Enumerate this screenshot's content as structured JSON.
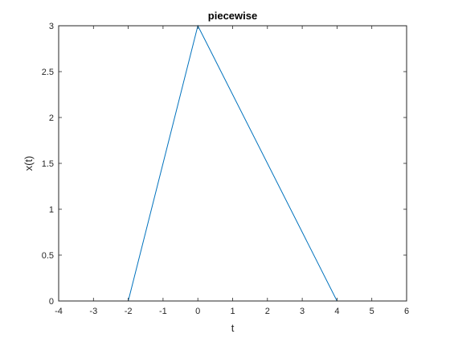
{
  "chart_data": {
    "type": "line",
    "title": "piecewise",
    "xlabel": "t",
    "ylabel": "x(t)",
    "xlim": [
      -4,
      6
    ],
    "ylim": [
      0,
      3
    ],
    "xticks": [
      -4,
      -3,
      -2,
      -1,
      0,
      1,
      2,
      3,
      4,
      5,
      6
    ],
    "yticks": [
      0,
      0.5,
      1,
      1.5,
      2,
      2.5,
      3
    ],
    "xtick_labels": [
      "-4",
      "-3",
      "-2",
      "-1",
      "0",
      "1",
      "2",
      "3",
      "4",
      "5",
      "6"
    ],
    "ytick_labels": [
      "0",
      "0.5",
      "1",
      "1.5",
      "2",
      "2.5",
      "3"
    ],
    "grid": false,
    "box": true,
    "series": [
      {
        "color": "#0072BD",
        "x": [
          -4,
          -2,
          0,
          4,
          6
        ],
        "y": [
          0,
          0,
          3,
          0,
          0
        ]
      }
    ]
  }
}
